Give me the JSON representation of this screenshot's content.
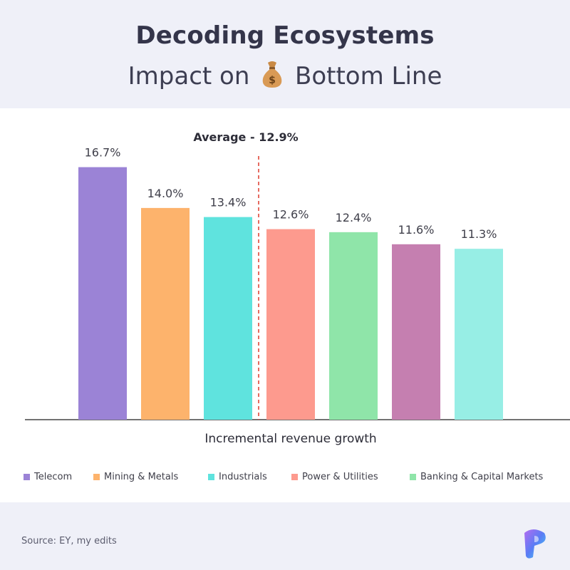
{
  "header": {
    "title": "Decoding Ecosystems",
    "subtitle_before": "Impact on",
    "subtitle_after": "Bottom Line",
    "icon": "money-bag-icon"
  },
  "footer": {
    "source": "Source: EY, my edits",
    "logo_icon": "brand-logo-icon"
  },
  "chart_data": {
    "type": "bar",
    "categories": [
      "Telecom",
      "Mining & Metals",
      "Industrials",
      "Power & Utilities",
      "Banking & Capital Markets",
      "",
      ""
    ],
    "values": [
      16.7,
      14.0,
      13.4,
      12.6,
      12.4,
      11.6,
      11.3
    ],
    "value_labels": [
      "16.7%",
      "14.0%",
      "13.4%",
      "12.6%",
      "12.4%",
      "11.6%",
      "11.3%"
    ],
    "colors": [
      "#9b83d6",
      "#fdb36c",
      "#5fe3de",
      "#fd9a8e",
      "#8fe5a9",
      "#c57fb0",
      "#97eee5"
    ],
    "xlabel": "Incremental revenue growth",
    "ylabel": "",
    "ylim": [
      0,
      18
    ],
    "grid": false,
    "average": {
      "value": 12.9,
      "label": "Average - 12.9%",
      "color": "#e0473a"
    },
    "legend": {
      "position": "bottom",
      "entries": [
        {
          "name": "Telecom",
          "color": "#9b83d6"
        },
        {
          "name": "Mining & Metals",
          "color": "#fdb36c"
        },
        {
          "name": "Industrials",
          "color": "#5fe3de"
        },
        {
          "name": "Power & Utilities",
          "color": "#fd9a8e"
        },
        {
          "name": "Banking & Capital Markets",
          "color": "#8fe5a9"
        }
      ]
    }
  }
}
